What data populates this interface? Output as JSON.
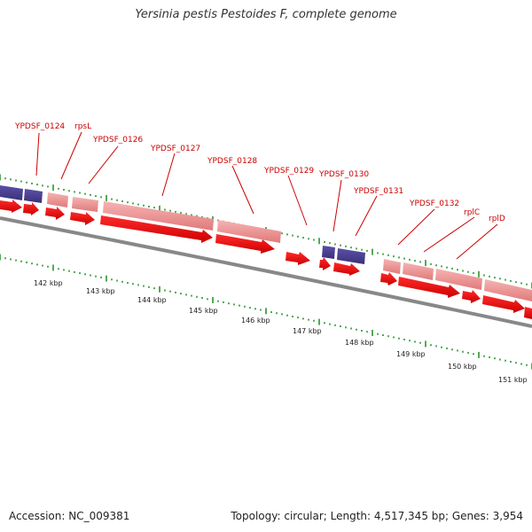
{
  "title": "Yersinia pestis Pestoides F, complete genome",
  "footer": {
    "accession": "Accession: NC_009381",
    "summary": "Topology: circular; Length: 4,517,345 bp; Genes: 3,954"
  },
  "colors": {
    "gene_label": "#cc0000",
    "cds_arrow": "#ee0000",
    "gene_feature": "#ef8f8f",
    "rna_feature": "#4a3f8e",
    "backbone": "#888888",
    "tick": "#1f8a1f"
  },
  "gene_labels": [
    "YPDSF_0124",
    "rpsL",
    "YPDSF_0126",
    "YPDSF_0127",
    "YPDSF_0128",
    "YPDSF_0129",
    "YPDSF_0130",
    "YPDSF_0131",
    "YPDSF_0132",
    "rplC",
    "rplD"
  ],
  "kbp_labels": [
    "142 kbp",
    "143 kbp",
    "144 kbp",
    "145 kbp",
    "146 kbp",
    "147 kbp",
    "148 kbp",
    "149 kbp",
    "150 kbp",
    "151 kbp"
  ]
}
